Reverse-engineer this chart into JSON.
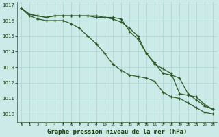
{
  "title": "Graphe pression niveau de la mer (hPa)",
  "background_color": "#cceae7",
  "grid_color": "#aad4d0",
  "line_color": "#2d5a27",
  "text_color": "#1a3a10",
  "x_values": [
    0,
    1,
    2,
    3,
    4,
    5,
    6,
    7,
    8,
    9,
    10,
    11,
    12,
    13,
    14,
    15,
    16,
    17,
    18,
    19,
    20,
    21,
    22,
    23
  ],
  "series1": [
    1016.8,
    1016.4,
    1016.3,
    1016.2,
    1016.3,
    1016.3,
    1016.3,
    1016.3,
    1016.3,
    1016.2,
    1016.2,
    1016.1,
    1015.9,
    1015.5,
    1015.0,
    1013.9,
    1013.3,
    1012.6,
    1012.5,
    1012.3,
    1011.3,
    1010.9,
    1010.5,
    1010.3
  ],
  "series2": [
    1016.8,
    1016.4,
    1016.3,
    1016.2,
    1016.3,
    1016.3,
    1016.3,
    1016.3,
    1016.3,
    1016.3,
    1016.2,
    1016.2,
    1016.1,
    1015.3,
    1014.8,
    1013.9,
    1013.2,
    1012.9,
    1012.6,
    1011.3,
    1011.2,
    1011.1,
    1010.6,
    1010.3
  ],
  "series3": [
    1016.8,
    1016.3,
    1016.1,
    1016.0,
    1016.0,
    1016.0,
    1015.8,
    1015.5,
    1015.0,
    1014.5,
    1013.9,
    1013.2,
    1012.8,
    1012.5,
    1012.4,
    1012.3,
    1012.1,
    1011.4,
    1011.1,
    1011.0,
    1010.7,
    1010.4,
    1010.1,
    1010.0
  ],
  "ylim": [
    1009.5,
    1017.2
  ],
  "yticks": [
    1010,
    1011,
    1012,
    1013,
    1014,
    1015,
    1016,
    1017
  ],
  "xlim": [
    -0.5,
    23.5
  ]
}
